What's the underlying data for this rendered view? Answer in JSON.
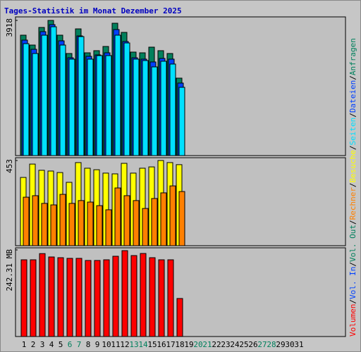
{
  "chart_data": [
    {
      "type": "bar",
      "title": "Tages-Statistik im Monat Dezember 2025",
      "ylim": [
        0,
        3918
      ],
      "yticks": [
        3918
      ],
      "series": [
        {
          "name": "Anfragen",
          "color": "#00805c",
          "values": [
            3490,
            3204,
            3714,
            3918,
            3490,
            2959,
            3673,
            2979,
            3041,
            3163,
            3836,
            3571,
            3000,
            2979,
            3143,
            3041,
            2959,
            2245,
            null,
            null,
            null,
            null,
            null,
            null,
            null,
            null,
            null,
            null,
            null,
            null,
            null
          ]
        },
        {
          "name": "Dateien",
          "color": "#0040ff",
          "values": [
            3347,
            3081,
            3592,
            3796,
            3326,
            2836,
            3469,
            2877,
            2918,
            2979,
            3653,
            3306,
            2836,
            2796,
            2714,
            2816,
            2796,
            2102,
            null,
            null,
            null,
            null,
            null,
            null,
            null,
            null,
            null,
            null,
            null,
            null,
            null
          ]
        },
        {
          "name": "Seiten",
          "color": "#00e0ff",
          "values": [
            3245,
            2959,
            3490,
            3734,
            3204,
            2796,
            3449,
            2796,
            2898,
            2898,
            3490,
            3265,
            2796,
            2755,
            2571,
            2735,
            2653,
            1979,
            null,
            null,
            null,
            null,
            null,
            null,
            null,
            null,
            null,
            null,
            null,
            null,
            null
          ]
        }
      ]
    },
    {
      "type": "bar",
      "ylim": [
        0,
        453
      ],
      "yticks": [
        453
      ],
      "series": [
        {
          "name": "Besuche",
          "color": "#ffff00",
          "values": [
            363,
            434,
            401,
            397,
            389,
            337,
            442,
            412,
            404,
            386,
            382,
            438,
            386,
            412,
            419,
            453,
            442,
            431,
            null,
            null,
            null,
            null,
            null,
            null,
            null,
            null,
            null,
            null,
            null,
            null,
            null
          ]
        },
        {
          "name": "Rechner",
          "color": "#ff8000",
          "values": [
            258,
            266,
            225,
            217,
            273,
            225,
            240,
            232,
            213,
            191,
            307,
            266,
            240,
            198,
            251,
            281,
            318,
            288,
            null,
            null,
            null,
            null,
            null,
            null,
            null,
            null,
            null,
            null,
            null,
            null,
            null
          ]
        }
      ]
    },
    {
      "type": "bar",
      "ylim": [
        0,
        242.31
      ],
      "yticks": [
        {
          "value": 242.31,
          "label": "242.31 MB"
        }
      ],
      "legend": [
        {
          "name": "Vol. Out",
          "color": "#00805c"
        },
        {
          "name": "Vol. In",
          "color": "#0040ff"
        }
      ],
      "separator": "/",
      "categories": [
        "1",
        "2",
        "3",
        "4",
        "5",
        "6",
        "7",
        "8",
        "9",
        "10",
        "11",
        "12",
        "13",
        "14",
        "15",
        "16",
        "17",
        "18",
        "19",
        "20",
        "21",
        "22",
        "23",
        "24",
        "25",
        "26",
        "27",
        "28",
        "29",
        "30",
        "31"
      ],
      "category_colors": [
        "#000000",
        "#000000",
        "#000000",
        "#000000",
        "#000000",
        "#00805c",
        "#00805c",
        "#000000",
        "#000000",
        "#000000",
        "#000000",
        "#000000",
        "#00805c",
        "#00805c",
        "#000000",
        "#000000",
        "#000000",
        "#000000",
        "#000000",
        "#00805c",
        "#00805c",
        "#000000",
        "#000000",
        "#000000",
        "#000000",
        "#000000",
        "#00805c",
        "#00805c",
        "#000000",
        "#000000",
        "#000000"
      ],
      "series": [
        {
          "name": "Volumen",
          "color": "#ff0000",
          "values": [
            214.7,
            214.7,
            232.0,
            222.6,
            220.6,
            218.7,
            218.7,
            212.8,
            212.8,
            214.7,
            224.6,
            240.3,
            226.5,
            232.4,
            220.6,
            214.7,
            214.7,
            106.4,
            null,
            null,
            null,
            null,
            null,
            null,
            null,
            null,
            null,
            null,
            null,
            null,
            null
          ]
        }
      ]
    }
  ]
}
